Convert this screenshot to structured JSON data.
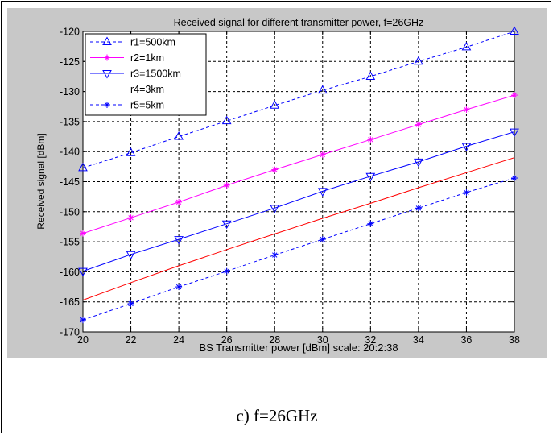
{
  "caption": "c) f=26GHz",
  "chart_data": {
    "type": "line",
    "title": "Received signal for different transmitter power, f=26GHz",
    "xlabel": "BS Transmitter power [dBm] scale: 20:2:38",
    "ylabel": "Received signal [dBm]",
    "xlim": [
      20,
      38
    ],
    "ylim": [
      -170,
      -120
    ],
    "xticks": [
      20,
      22,
      24,
      26,
      28,
      30,
      32,
      34,
      36,
      38
    ],
    "yticks": [
      -120,
      -125,
      -130,
      -135,
      -140,
      -145,
      -150,
      -155,
      -160,
      -165,
      -170
    ],
    "grid": true,
    "legend_position": "top-left",
    "x": [
      20,
      22,
      24,
      26,
      28,
      30,
      32,
      34,
      36,
      38
    ],
    "series": [
      {
        "name": "r1=500km",
        "color": "#0000ff",
        "dash": "dashed",
        "marker": "triangle-up",
        "values": [
          -142.7,
          -140.2,
          -137.5,
          -134.9,
          -132.3,
          -129.8,
          -127.5,
          -125.0,
          -122.6,
          -120.0
        ]
      },
      {
        "name": "r2=1km",
        "color": "#ff00ff",
        "dash": "solid",
        "marker": "star",
        "values": [
          -153.6,
          -151.0,
          -148.4,
          -145.6,
          -143.0,
          -140.5,
          -138.0,
          -135.5,
          -133.0,
          -130.6
        ]
      },
      {
        "name": "r3=1500km",
        "color": "#0000ff",
        "dash": "solid",
        "marker": "triangle-down",
        "values": [
          -159.9,
          -157.1,
          -154.6,
          -152.0,
          -149.4,
          -146.6,
          -144.1,
          -141.7,
          -139.1,
          -136.7
        ]
      },
      {
        "name": "r4=3km",
        "color": "#ff0000",
        "dash": "solid",
        "marker": "none",
        "values": [
          -164.7,
          -161.8,
          -159.0,
          -156.3,
          -153.7,
          -151.1,
          -148.6,
          -146.0,
          -143.5,
          -141.0
        ]
      },
      {
        "name": "r5=5km",
        "color": "#0000ff",
        "dash": "dashed",
        "marker": "star",
        "values": [
          -168.0,
          -165.3,
          -162.5,
          -159.9,
          -157.2,
          -154.6,
          -152.0,
          -149.4,
          -146.8,
          -144.4
        ]
      }
    ]
  }
}
